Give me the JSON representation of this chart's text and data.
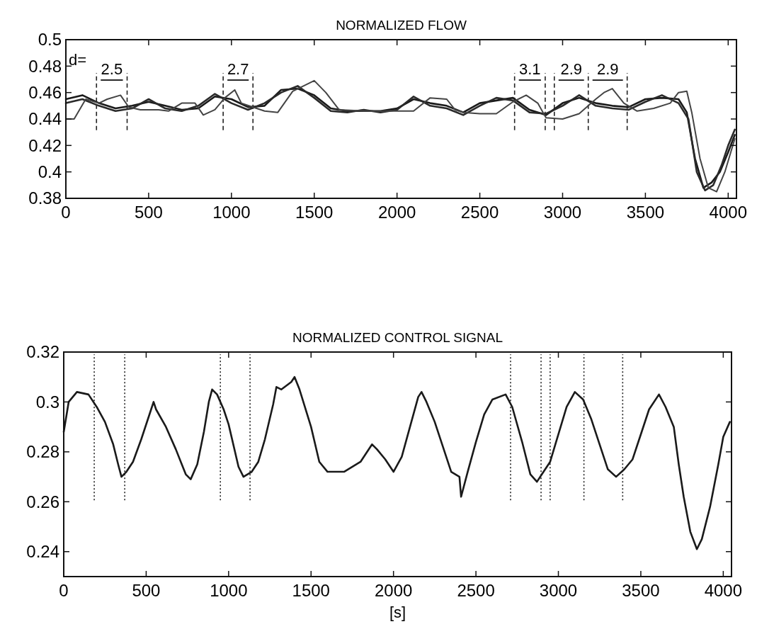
{
  "chart_data": [
    {
      "type": "line",
      "title": "NORMALIZED FLOW",
      "xlim": [
        0,
        4050
      ],
      "xticks": [
        0,
        500,
        1000,
        1500,
        2000,
        2500,
        3000,
        3500,
        4000
      ],
      "ylim": [
        0.38,
        0.5
      ],
      "yticks": [
        0.38,
        0.4,
        0.42,
        0.44,
        0.46,
        0.48,
        0.5
      ],
      "grid": false,
      "series": [
        {
          "color": "#1a1a1a",
          "x": [
            0,
            100,
            200,
            300,
            400,
            500,
            600,
            700,
            800,
            900,
            1000,
            1100,
            1200,
            1300,
            1400,
            1500,
            1600,
            1700,
            1800,
            1900,
            2000,
            2100,
            2200,
            2300,
            2400,
            2500,
            2600,
            2700,
            2800,
            2900,
            3000,
            3100,
            3200,
            3300,
            3400,
            3500,
            3600,
            3700,
            3750,
            3800,
            3850,
            3900,
            3950,
            4000,
            4040
          ],
          "values": [
            0.455,
            0.458,
            0.452,
            0.448,
            0.45,
            0.453,
            0.45,
            0.447,
            0.448,
            0.457,
            0.455,
            0.449,
            0.45,
            0.462,
            0.463,
            0.458,
            0.448,
            0.446,
            0.446,
            0.446,
            0.448,
            0.455,
            0.452,
            0.45,
            0.445,
            0.452,
            0.454,
            0.456,
            0.447,
            0.443,
            0.452,
            0.456,
            0.452,
            0.45,
            0.449,
            0.455,
            0.456,
            0.455,
            0.445,
            0.41,
            0.388,
            0.392,
            0.4,
            0.415,
            0.428
          ]
        },
        {
          "color": "#2a2a2a",
          "x": [
            0,
            100,
            200,
            300,
            400,
            500,
            600,
            700,
            800,
            900,
            1000,
            1100,
            1200,
            1300,
            1400,
            1500,
            1600,
            1700,
            1800,
            1900,
            2000,
            2100,
            2200,
            2300,
            2400,
            2500,
            2600,
            2700,
            2800,
            2900,
            3000,
            3100,
            3200,
            3300,
            3400,
            3500,
            3600,
            3700,
            3760,
            3810,
            3860,
            3910,
            3960,
            4000,
            4040
          ],
          "values": [
            0.452,
            0.455,
            0.45,
            0.446,
            0.448,
            0.455,
            0.448,
            0.446,
            0.45,
            0.459,
            0.452,
            0.447,
            0.452,
            0.46,
            0.465,
            0.456,
            0.446,
            0.445,
            0.447,
            0.445,
            0.447,
            0.457,
            0.45,
            0.448,
            0.443,
            0.45,
            0.456,
            0.454,
            0.445,
            0.444,
            0.45,
            0.458,
            0.45,
            0.448,
            0.447,
            0.453,
            0.458,
            0.452,
            0.44,
            0.4,
            0.386,
            0.39,
            0.405,
            0.42,
            0.432
          ]
        },
        {
          "color": "#444444",
          "x": [
            0,
            50,
            120,
            200,
            250,
            330,
            380,
            450,
            560,
            620,
            700,
            780,
            830,
            900,
            960,
            1020,
            1060,
            1130,
            1200,
            1280,
            1370,
            1500,
            1570,
            1650,
            1800,
            2000,
            2100,
            2200,
            2300,
            2350,
            2400,
            2500,
            2600,
            2700,
            2780,
            2850,
            2900,
            3000,
            3100,
            3200,
            3250,
            3300,
            3370,
            3450,
            3550,
            3650,
            3700,
            3750,
            3780,
            3830,
            3880,
            3930,
            3980,
            4040
          ],
          "values": [
            0.44,
            0.44,
            0.455,
            0.452,
            0.455,
            0.458,
            0.449,
            0.447,
            0.447,
            0.446,
            0.452,
            0.452,
            0.443,
            0.447,
            0.456,
            0.462,
            0.452,
            0.449,
            0.446,
            0.445,
            0.461,
            0.469,
            0.46,
            0.447,
            0.446,
            0.446,
            0.446,
            0.456,
            0.455,
            0.447,
            0.445,
            0.444,
            0.444,
            0.453,
            0.458,
            0.452,
            0.441,
            0.44,
            0.444,
            0.455,
            0.46,
            0.463,
            0.452,
            0.446,
            0.448,
            0.452,
            0.46,
            0.461,
            0.445,
            0.41,
            0.388,
            0.385,
            0.4,
            0.425
          ]
        }
      ],
      "ref_lines": [
        {
          "axis": "x",
          "value": 185,
          "line_style": "dashed"
        },
        {
          "axis": "x",
          "value": 370,
          "line_style": "dashed"
        },
        {
          "axis": "x",
          "value": 950,
          "line_style": "dashed"
        },
        {
          "axis": "x",
          "value": 1130,
          "line_style": "dashed"
        },
        {
          "axis": "x",
          "value": 2710,
          "line_style": "dashed"
        },
        {
          "axis": "x",
          "value": 2895,
          "line_style": "dashed"
        },
        {
          "axis": "x",
          "value": 2950,
          "line_style": "dashed"
        },
        {
          "axis": "x",
          "value": 3155,
          "line_style": "dashed"
        },
        {
          "axis": "x",
          "value": 3390,
          "line_style": "dashed"
        }
      ],
      "annotations": [
        "d=",
        "2.5",
        "2.7",
        "3.1",
        "2.9",
        "2.9"
      ]
    },
    {
      "type": "line",
      "title": "NORMALIZED CONTROL SIGNAL",
      "xlabel": "[s]",
      "xlim": [
        0,
        4050
      ],
      "xticks": [
        0,
        500,
        1000,
        1500,
        2000,
        2500,
        3000,
        3500,
        4000
      ],
      "ylim": [
        0.23,
        0.32
      ],
      "yticks": [
        0.24,
        0.26,
        0.28,
        0.3,
        0.32
      ],
      "grid": false,
      "series": [
        {
          "color": "#1a1a1a",
          "x": [
            0,
            30,
            80,
            150,
            200,
            250,
            300,
            330,
            350,
            380,
            420,
            470,
            530,
            545,
            560,
            620,
            680,
            740,
            770,
            810,
            850,
            880,
            900,
            930,
            970,
            1000,
            1060,
            1090,
            1140,
            1180,
            1220,
            1270,
            1290,
            1320,
            1380,
            1400,
            1430,
            1500,
            1550,
            1600,
            1700,
            1800,
            1870,
            1900,
            1950,
            2000,
            2050,
            2100,
            2150,
            2170,
            2200,
            2250,
            2300,
            2350,
            2400,
            2410,
            2450,
            2500,
            2550,
            2600,
            2680,
            2720,
            2780,
            2830,
            2870,
            2910,
            2950,
            3000,
            3050,
            3100,
            3150,
            3200,
            3250,
            3300,
            3350,
            3400,
            3450,
            3500,
            3550,
            3610,
            3650,
            3700,
            3730,
            3760,
            3800,
            3840,
            3870,
            3920,
            3970,
            4000,
            4040
          ],
          "values": [
            0.288,
            0.3,
            0.304,
            0.303,
            0.298,
            0.292,
            0.283,
            0.275,
            0.27,
            0.272,
            0.276,
            0.285,
            0.297,
            0.3,
            0.297,
            0.29,
            0.281,
            0.271,
            0.269,
            0.275,
            0.288,
            0.3,
            0.305,
            0.303,
            0.297,
            0.291,
            0.274,
            0.27,
            0.272,
            0.276,
            0.285,
            0.299,
            0.306,
            0.305,
            0.308,
            0.31,
            0.305,
            0.29,
            0.276,
            0.272,
            0.272,
            0.276,
            0.283,
            0.281,
            0.277,
            0.272,
            0.278,
            0.29,
            0.302,
            0.304,
            0.3,
            0.292,
            0.282,
            0.272,
            0.27,
            0.262,
            0.272,
            0.284,
            0.295,
            0.301,
            0.303,
            0.298,
            0.284,
            0.271,
            0.268,
            0.272,
            0.276,
            0.287,
            0.298,
            0.304,
            0.301,
            0.293,
            0.283,
            0.273,
            0.27,
            0.273,
            0.277,
            0.287,
            0.297,
            0.303,
            0.298,
            0.29,
            0.275,
            0.262,
            0.248,
            0.241,
            0.245,
            0.258,
            0.275,
            0.286,
            0.292
          ]
        }
      ],
      "ref_lines": [
        {
          "axis": "x",
          "value": 185,
          "line_style": "dotted"
        },
        {
          "axis": "x",
          "value": 370,
          "line_style": "dotted"
        },
        {
          "axis": "x",
          "value": 950,
          "line_style": "dotted"
        },
        {
          "axis": "x",
          "value": 1130,
          "line_style": "dotted"
        },
        {
          "axis": "x",
          "value": 2710,
          "line_style": "dotted"
        },
        {
          "axis": "x",
          "value": 2895,
          "line_style": "dotted"
        },
        {
          "axis": "x",
          "value": 2950,
          "line_style": "dotted"
        },
        {
          "axis": "x",
          "value": 3155,
          "line_style": "dotted"
        },
        {
          "axis": "x",
          "value": 3390,
          "line_style": "dotted"
        }
      ]
    }
  ]
}
